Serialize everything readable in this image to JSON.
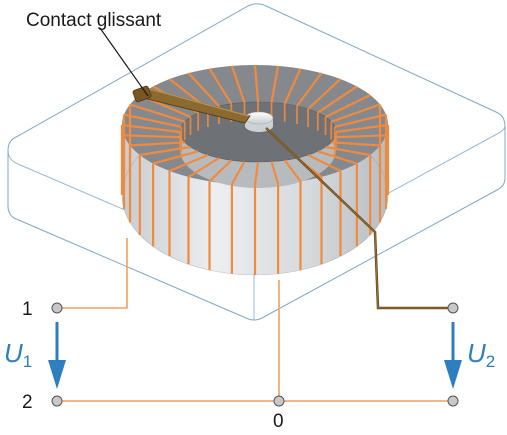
{
  "title": "Contact glissant",
  "terminals": {
    "t1": "1",
    "t2": "2",
    "t0": "0"
  },
  "voltages": {
    "u1": {
      "symbol": "U",
      "sub": "1"
    },
    "u2": {
      "symbol": "U",
      "sub": "2"
    }
  },
  "colors": {
    "winding": "#f08a3e",
    "wiper": "#6b4a20",
    "core_light": "#d3d6d9",
    "core_dark": "#7e8185",
    "base_outline": "#7fa9c9",
    "arrow": "#2e7fc0",
    "wire": "#f0a060"
  },
  "winding_turns": 36
}
